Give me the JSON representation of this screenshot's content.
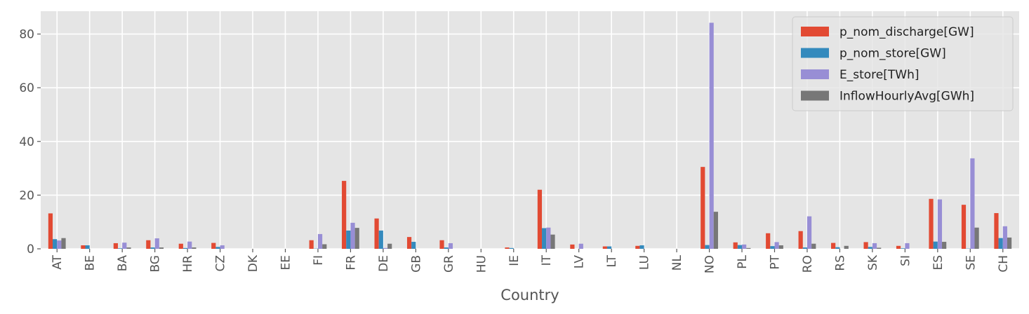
{
  "chart_data": {
    "type": "bar",
    "xlabel": "Country",
    "ylabel": "",
    "ylim": [
      0,
      88.5
    ],
    "yticks": [
      0,
      20,
      40,
      60,
      80
    ],
    "grid": true,
    "legend_position": "top-right",
    "categories": [
      "AT",
      "BE",
      "BA",
      "BG",
      "HR",
      "CZ",
      "DK",
      "EE",
      "FI",
      "FR",
      "DE",
      "GB",
      "GR",
      "HU",
      "IE",
      "IT",
      "LV",
      "LT",
      "LU",
      "NL",
      "NO",
      "PL",
      "PT",
      "RO",
      "RS",
      "SK",
      "SI",
      "ES",
      "SE",
      "CH"
    ],
    "series": [
      {
        "name": "p_nom_discharge[GW]",
        "color": "#E24A33",
        "values": [
          13.2,
          1.3,
          2.1,
          3.2,
          1.9,
          2.2,
          0.0,
          0.0,
          3.2,
          25.3,
          11.3,
          4.4,
          3.2,
          0.0,
          0.5,
          22.0,
          1.6,
          0.9,
          1.1,
          0.0,
          30.5,
          2.4,
          5.8,
          6.6,
          2.2,
          2.5,
          1.1,
          18.6,
          16.4,
          13.3
        ]
      },
      {
        "name": "p_nom_store[GW]",
        "color": "#348ABD",
        "values": [
          3.6,
          1.3,
          0.2,
          0.5,
          0.3,
          0.7,
          0.0,
          0.0,
          0.1,
          6.8,
          6.8,
          2.6,
          0.5,
          0.0,
          0.3,
          7.7,
          0.0,
          0.9,
          1.3,
          0.0,
          1.4,
          1.4,
          1.0,
          0.5,
          0.6,
          0.7,
          0.2,
          2.7,
          0.1,
          4.0
        ]
      },
      {
        "name": "E_store[TWh]",
        "color": "#988ED5",
        "values": [
          3.1,
          0.0,
          2.3,
          3.9,
          2.7,
          1.3,
          0.0,
          0.0,
          5.5,
          9.7,
          0.3,
          0.0,
          2.1,
          0.0,
          0.0,
          7.9,
          1.9,
          0.0,
          0.0,
          0.0,
          84.2,
          1.6,
          2.5,
          12.1,
          0.0,
          2.1,
          2.1,
          18.4,
          33.7,
          8.4
        ]
      },
      {
        "name": "InflowHourlyAvg[GWh]",
        "color": "#777777",
        "values": [
          4.0,
          0.0,
          0.5,
          0.5,
          0.5,
          0.0,
          0.0,
          0.0,
          1.7,
          7.8,
          1.9,
          0.0,
          0.0,
          0.0,
          0.0,
          5.3,
          0.0,
          0.0,
          0.0,
          0.0,
          13.8,
          0.3,
          1.3,
          1.9,
          1.1,
          0.4,
          0.0,
          2.6,
          7.9,
          4.2
        ]
      }
    ]
  }
}
